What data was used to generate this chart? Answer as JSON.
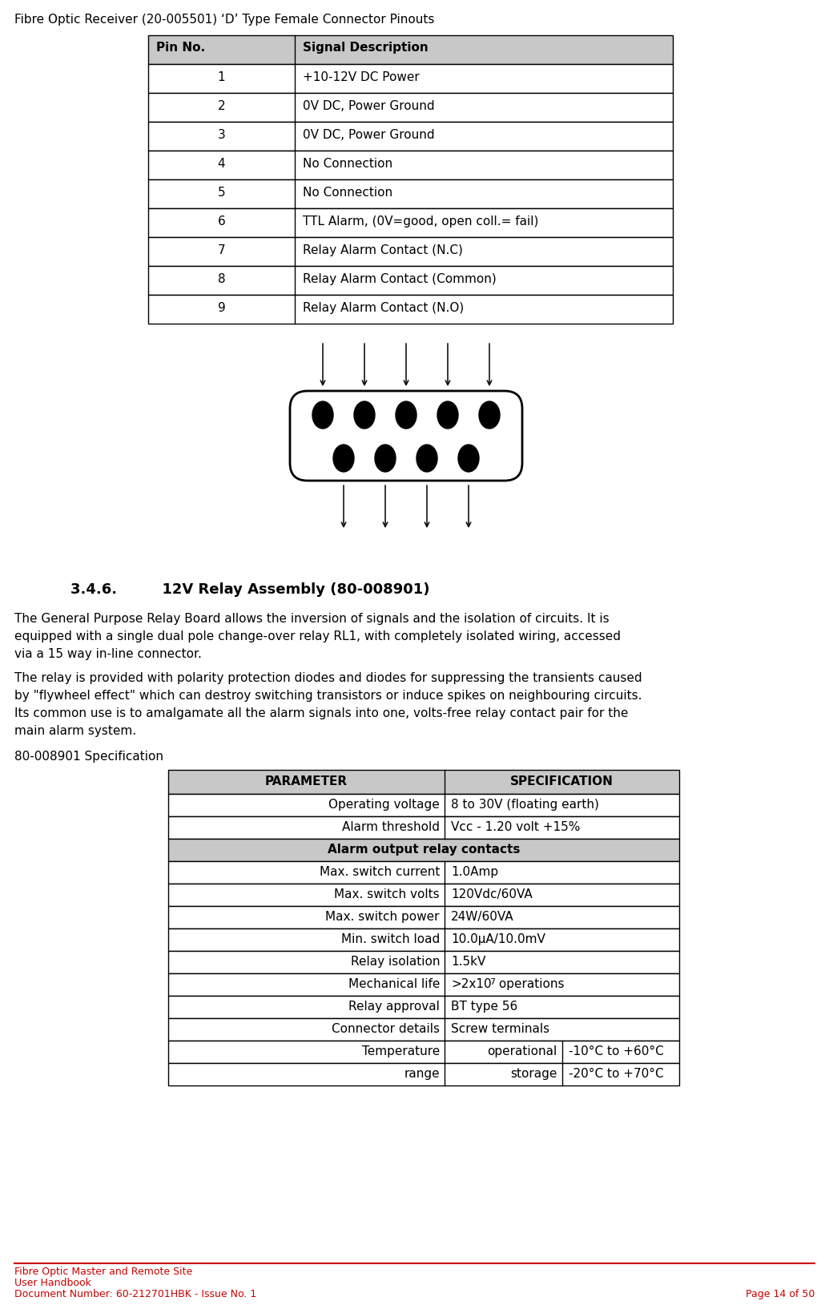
{
  "page_title": "Fibre Optic Receiver (20-005501) ‘D’ Type Female Connector Pinouts",
  "table1_headers": [
    "Pin No.",
    "Signal Description"
  ],
  "table1_rows": [
    [
      "1",
      "+10-12V DC Power"
    ],
    [
      "2",
      "0V DC, Power Ground"
    ],
    [
      "3",
      "0V DC, Power Ground"
    ],
    [
      "4",
      "No Connection"
    ],
    [
      "5",
      "No Connection"
    ],
    [
      "6",
      "TTL Alarm, (0V=good, open coll.= fail)"
    ],
    [
      "7",
      "Relay Alarm Contact (N.C)"
    ],
    [
      "8",
      "Relay Alarm Contact (Common)"
    ],
    [
      "9",
      "Relay Alarm Contact (N.O)"
    ]
  ],
  "section_title": "3.4.6.         12V Relay Assembly (80-008901)",
  "para1_lines": [
    "The General Purpose Relay Board allows the inversion of signals and the isolation of circuits. It is",
    "equipped with a single dual pole change-over relay RL1, with completely isolated wiring, accessed",
    "via a 15 way in-line connector."
  ],
  "para2_lines": [
    "The relay is provided with polarity protection diodes and diodes for suppressing the transients caused",
    "by \"flywheel effect\" which can destroy switching transistors or induce spikes on neighbouring circuits.",
    "Its common use is to amalgamate all the alarm signals into one, volts-free relay contact pair for the",
    "main alarm system."
  ],
  "spec_label": "80-008901 Specification",
  "table2_headers": [
    "PARAMETER",
    "SPECIFICATION"
  ],
  "table2_regular_rows": [
    [
      "Operating voltage",
      "8 to 30V (floating earth)",
      false
    ],
    [
      "Alarm threshold",
      "Vcc - 1.20 volt +15%",
      false
    ],
    [
      "Alarm output relay contacts",
      "",
      true
    ],
    [
      "Max. switch current",
      "1.0Amp",
      false
    ],
    [
      "Max. switch volts",
      "120Vdc/60VA",
      false
    ],
    [
      "Max. switch power",
      "24W/60VA",
      false
    ],
    [
      "Min. switch load",
      "10.0μA/10.0mV",
      false
    ],
    [
      "Relay isolation",
      "1.5kV",
      false
    ],
    [
      "Mechanical life",
      ">2x10^7 operations",
      false
    ],
    [
      "Relay approval",
      "BT type 56",
      false
    ],
    [
      "Connector details",
      "Screw terminals",
      false
    ]
  ],
  "footer_line1": "Fibre Optic Master and Remote Site",
  "footer_line2": "User Handbook",
  "footer_line3": "Document Number: 60-212701HBK - Issue No. 1",
  "footer_right": "Page 14 of 50",
  "bg_color": "#ffffff",
  "header_bg": "#c8c8c8",
  "footer_color": "#cc0000"
}
